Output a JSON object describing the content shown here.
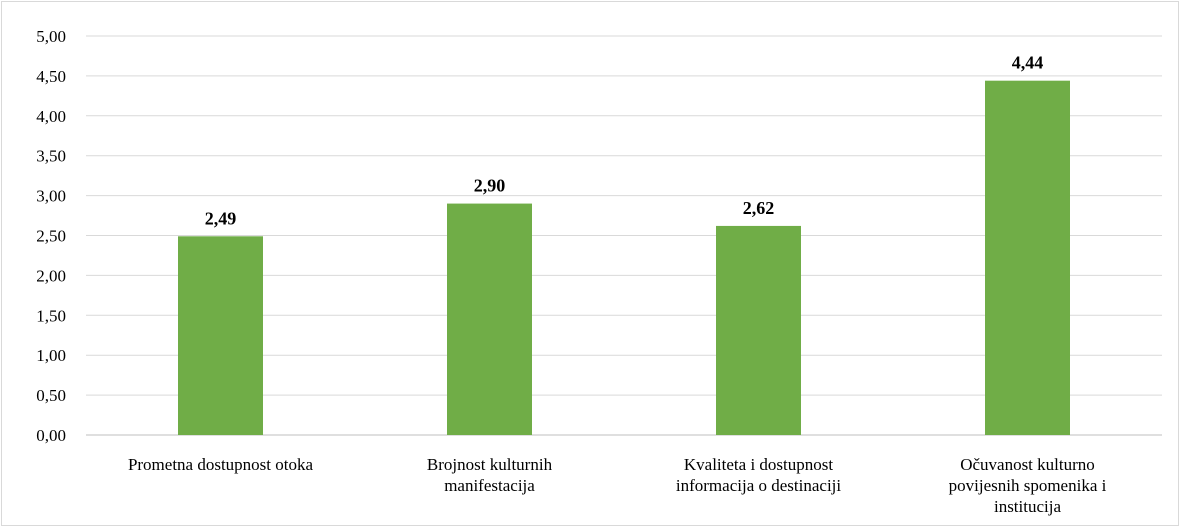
{
  "chart_data": {
    "type": "bar",
    "categories": [
      [
        "Prometna dostupnost otoka"
      ],
      [
        "Brojnost kulturnih",
        "manifestacija"
      ],
      [
        "Kvaliteta  i dostupnost",
        "informacija o destinaciji"
      ],
      [
        "Očuvanost kulturno",
        "povijesnih spomenika i",
        "institucija"
      ]
    ],
    "values": [
      2.49,
      2.9,
      2.62,
      4.44
    ],
    "data_labels": [
      "2,49",
      "2,90",
      "2,62",
      "4,44"
    ],
    "yticks": [
      "0,00",
      "0,50",
      "1,00",
      "1,50",
      "2,00",
      "2,50",
      "3,00",
      "3,50",
      "4,00",
      "4,50",
      "5,00"
    ],
    "ylim": [
      0,
      5
    ],
    "title": "",
    "xlabel": "",
    "ylabel": "",
    "grid": true,
    "legend": "none",
    "colors": {
      "bar": "#70ad47",
      "grid": "#d9d9d9",
      "axis": "#bfbfbf"
    }
  }
}
